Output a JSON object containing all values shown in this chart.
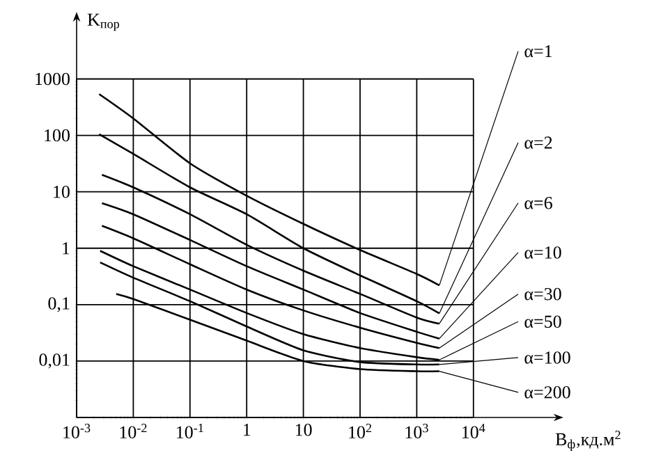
{
  "chart_data": {
    "type": "line",
    "xlabel": "B$_{ф}$,кд.м$^{2}$",
    "ylabel": "K$_{пор}$",
    "log": "xy",
    "grid": true,
    "legend": "right",
    "xlim": [
      0.001,
      300000
    ],
    "ylim": [
      0.001,
      12000
    ],
    "xticks": [
      {
        "value": 0.001,
        "label": "10$^{-3}$"
      },
      {
        "value": 0.01,
        "label": "10$^{-2}$"
      },
      {
        "value": 0.1,
        "label": "10$^{-1}$"
      },
      1,
      10,
      {
        "value": 100,
        "label": "10$^{2}$"
      },
      {
        "value": 1000,
        "label": "10$^{3}$"
      },
      {
        "value": 10000,
        "label": "10$^{4}$"
      }
    ],
    "yticks": [
      {
        "value": 0.001,
        "label": null
      },
      {
        "value": 0.01,
        "label": "0,01"
      },
      {
        "value": 0.1,
        "label": "0,1"
      },
      1,
      10,
      100,
      1000
    ],
    "series": [
      {
        "name": "α=1",
        "color": "#000000",
        "x": [
          0.0025,
          0.01,
          0.1,
          1,
          10,
          100,
          1000,
          2500
        ],
        "values": [
          540,
          200,
          32,
          8.5,
          2.7,
          0.93,
          0.35,
          0.22
        ]
      },
      {
        "name": "α=2",
        "color": "#000000",
        "x": [
          0.0025,
          0.01,
          0.1,
          1,
          10,
          100,
          1000,
          2500
        ],
        "values": [
          105,
          47,
          12,
          4,
          1.0,
          0.33,
          0.115,
          0.07
        ]
      },
      {
        "name": "α=6",
        "color": "#000000",
        "x": [
          0.0028,
          0.01,
          0.1,
          1,
          10,
          100,
          1000,
          2500
        ],
        "values": [
          20,
          12,
          4,
          1.15,
          0.4,
          0.155,
          0.059,
          0.046
        ]
      },
      {
        "name": "α=10",
        "color": "#000000",
        "x": [
          0.0028,
          0.01,
          0.1,
          1,
          10,
          100,
          1000,
          2500
        ],
        "values": [
          6.3,
          4,
          1.4,
          0.48,
          0.185,
          0.071,
          0.033,
          0.025
        ]
      },
      {
        "name": "α=30",
        "color": "#000000",
        "x": [
          0.0028,
          0.01,
          0.1,
          1,
          10,
          100,
          1000,
          2500
        ],
        "values": [
          2.5,
          1.5,
          0.52,
          0.185,
          0.079,
          0.039,
          0.021,
          0.017
        ]
      },
      {
        "name": "α=50",
        "color": "#000000",
        "x": [
          0.0026,
          0.01,
          0.1,
          1,
          10,
          100,
          1000,
          2500
        ],
        "values": [
          0.9,
          0.48,
          0.185,
          0.071,
          0.03,
          0.017,
          0.0117,
          0.0105
        ]
      },
      {
        "name": "α=100",
        "color": "#000000",
        "x": [
          0.0026,
          0.01,
          0.1,
          1,
          10,
          100,
          1000,
          2500
        ],
        "values": [
          0.56,
          0.3,
          0.115,
          0.041,
          0.0155,
          0.0096,
          0.0087,
          0.0087
        ]
      },
      {
        "name": "α=200",
        "color": "#000000",
        "x": [
          0.005,
          0.01,
          0.1,
          1,
          10,
          100,
          1000,
          2500
        ],
        "values": [
          0.155,
          0.126,
          0.054,
          0.023,
          0.01,
          0.0072,
          0.0066,
          0.0066
        ]
      }
    ]
  }
}
